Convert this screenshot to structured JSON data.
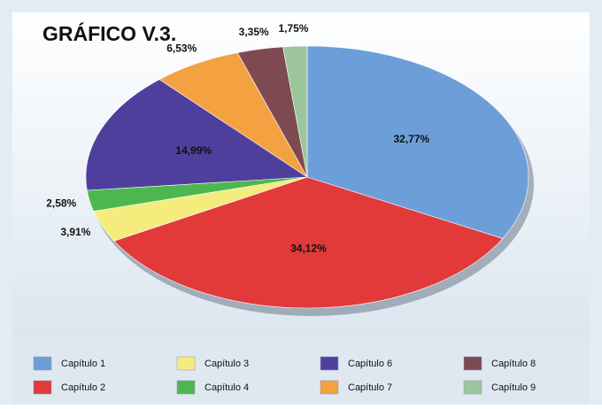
{
  "chart_data": {
    "type": "pie",
    "title": "GRÁFICO V.3.",
    "categories": [
      "Capítulo 1",
      "Capítulo 2",
      "Capítulo 3",
      "Capítulo 4",
      "Capítulo 6",
      "Capítulo 7",
      "Capítulo 8",
      "Capítulo 9"
    ],
    "values": [
      32.77,
      34.12,
      3.91,
      2.58,
      14.99,
      6.53,
      3.35,
      1.75
    ],
    "value_labels": [
      "32,77%",
      "34,12%",
      "3,91%",
      "2,58%",
      "14,99%",
      "6,53%",
      "3,35%",
      "1,75%"
    ],
    "colors": [
      "#6c9fd9",
      "#e2393b",
      "#f4ec7c",
      "#4db74f",
      "#4f3f9d",
      "#f4a142",
      "#7e4a52",
      "#9dc59b"
    ],
    "legend": "bottom"
  }
}
